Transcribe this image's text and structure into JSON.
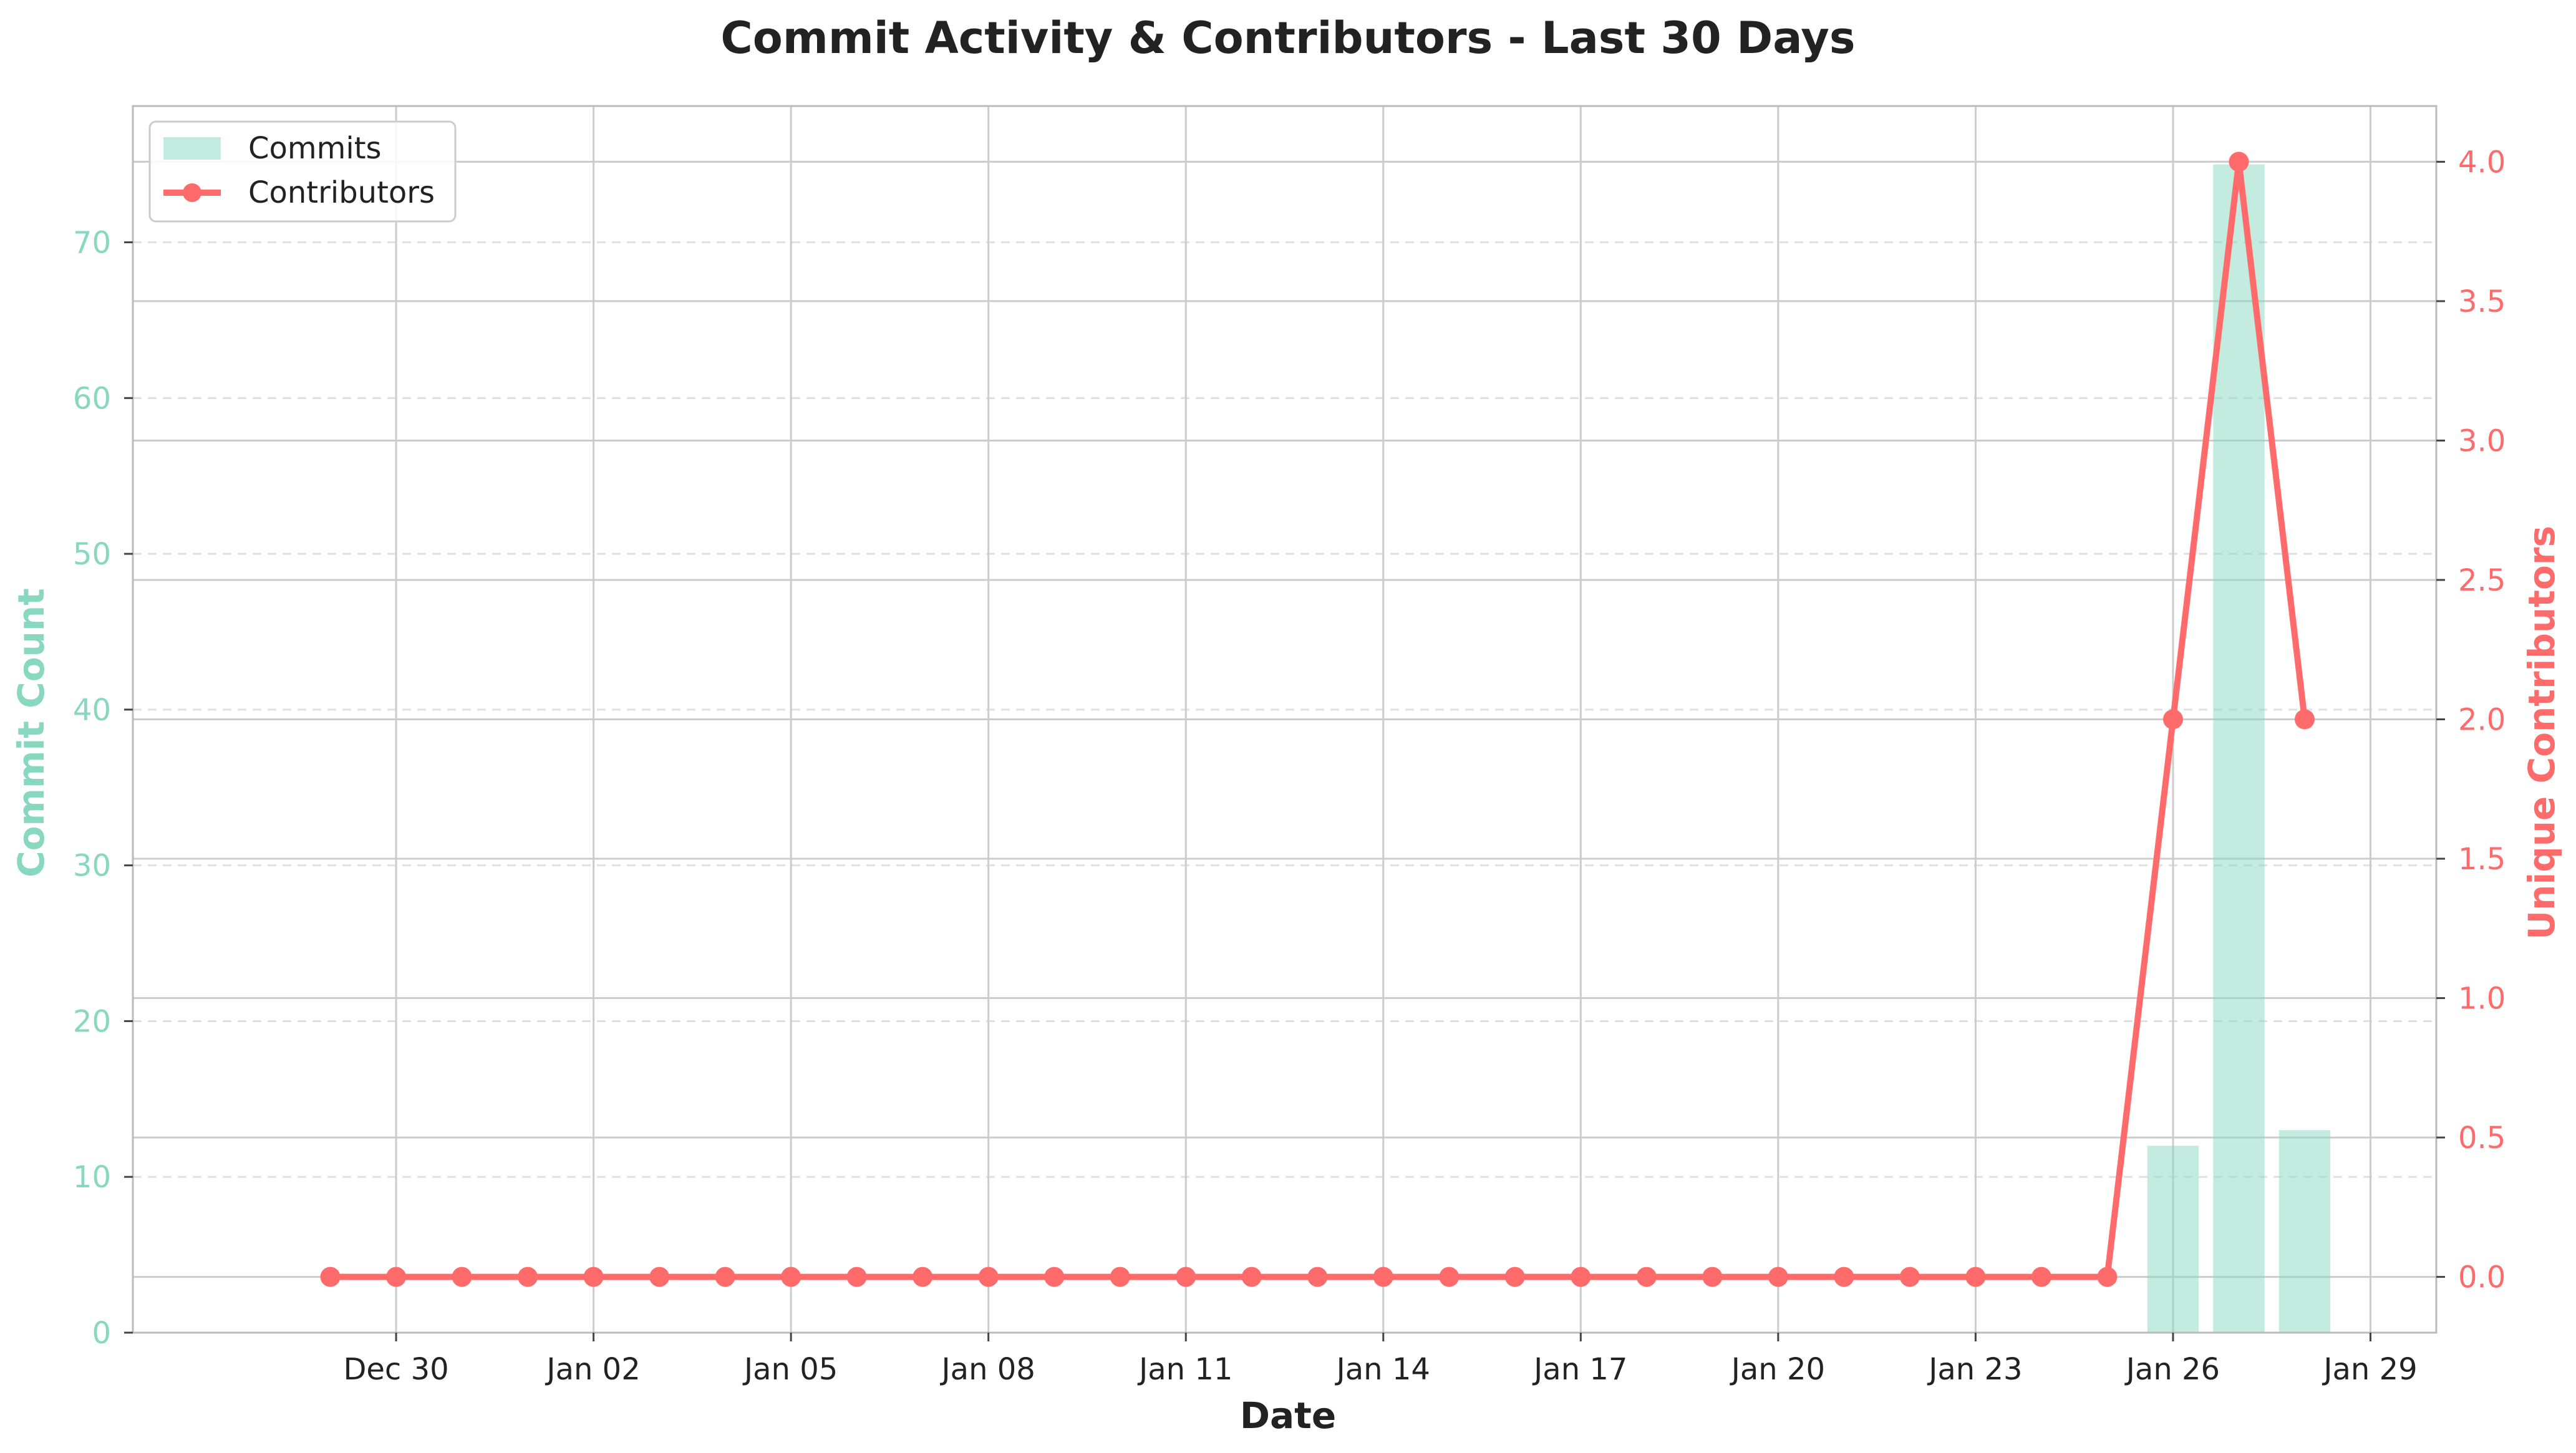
{
  "chart_data": {
    "type": "bar+line",
    "title": "Commit Activity & Contributors - Last 30 Days",
    "xlabel": "Date",
    "ylabel_left": "Commit Count",
    "ylabel_right": "Unique Contributors",
    "x_tick_labels": [
      "Dec 30",
      "Jan 02",
      "Jan 05",
      "Jan 08",
      "Jan 11",
      "Jan 14",
      "Jan 17",
      "Jan 20",
      "Jan 23",
      "Jan 26",
      "Jan 29"
    ],
    "y_left_ticks": [
      0,
      10,
      20,
      30,
      40,
      50,
      60,
      70
    ],
    "y_right_ticks": [
      "0.0",
      "0.5",
      "1.0",
      "1.5",
      "2.0",
      "2.5",
      "3.0",
      "3.5",
      "4.0"
    ],
    "ylim_left": [
      0,
      78.75
    ],
    "ylim_right": [
      -0.2,
      4.2
    ],
    "xlim": [
      "2023-12-26",
      "2024-01-30"
    ],
    "grid": true,
    "legend_position": "upper left",
    "colors": {
      "commits": "#88d8c0",
      "contributors": "#ff6b6b",
      "grid": "#cccccc"
    },
    "dates": [
      "2023-12-29",
      "2023-12-30",
      "2023-12-31",
      "2024-01-01",
      "2024-01-02",
      "2024-01-03",
      "2024-01-04",
      "2024-01-05",
      "2024-01-06",
      "2024-01-07",
      "2024-01-08",
      "2024-01-09",
      "2024-01-10",
      "2024-01-11",
      "2024-01-12",
      "2024-01-13",
      "2024-01-14",
      "2024-01-15",
      "2024-01-16",
      "2024-01-17",
      "2024-01-18",
      "2024-01-19",
      "2024-01-20",
      "2024-01-21",
      "2024-01-22",
      "2024-01-23",
      "2024-01-24",
      "2024-01-25",
      "2024-01-26",
      "2024-01-27",
      "2024-01-28"
    ],
    "series": [
      {
        "name": "Commits",
        "type": "bar",
        "axis": "left",
        "values": [
          0,
          0,
          0,
          0,
          0,
          0,
          0,
          0,
          0,
          0,
          0,
          0,
          0,
          0,
          0,
          0,
          0,
          0,
          0,
          0,
          0,
          0,
          0,
          0,
          0,
          0,
          0,
          0,
          12,
          75,
          13
        ]
      },
      {
        "name": "Contributors",
        "type": "line",
        "axis": "right",
        "values": [
          0,
          0,
          0,
          0,
          0,
          0,
          0,
          0,
          0,
          0,
          0,
          0,
          0,
          0,
          0,
          0,
          0,
          0,
          0,
          0,
          0,
          0,
          0,
          0,
          0,
          0,
          0,
          0,
          2,
          4,
          2
        ]
      }
    ]
  }
}
